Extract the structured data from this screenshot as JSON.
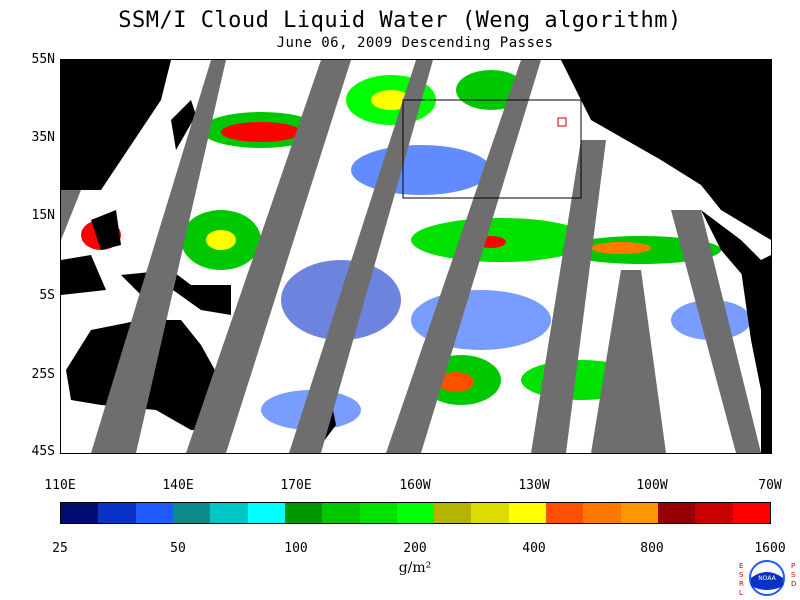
{
  "title": "SSM/I Cloud Liquid Water (Weng algorithm)",
  "subtitle": "June 06, 2009  Descending Passes",
  "y_axis_labels": [
    "55N",
    "35N",
    "15N",
    "5S",
    "25S",
    "45S"
  ],
  "x_axis_labels": [
    "110E",
    "140E",
    "170E",
    "160W",
    "130W",
    "100W",
    "70W"
  ],
  "legend": {
    "labels": [
      "25",
      "50",
      "100",
      "200",
      "400",
      "800",
      "1600"
    ],
    "colors": [
      "#000d70",
      "#0a32c8",
      "#1e5aff",
      "#0a8c8c",
      "#00c8c8",
      "#00ffff",
      "#009600",
      "#00c800",
      "#00e100",
      "#00ff00",
      "#b4b400",
      "#dcdc00",
      "#ffff00",
      "#ff5000",
      "#ff7800",
      "#ff9600",
      "#960000",
      "#c80000",
      "#ff0000"
    ],
    "units": "g/m²"
  },
  "logo": {
    "left_text": "ESRL",
    "right_text": "PSD",
    "center_text": "NOAA"
  }
}
